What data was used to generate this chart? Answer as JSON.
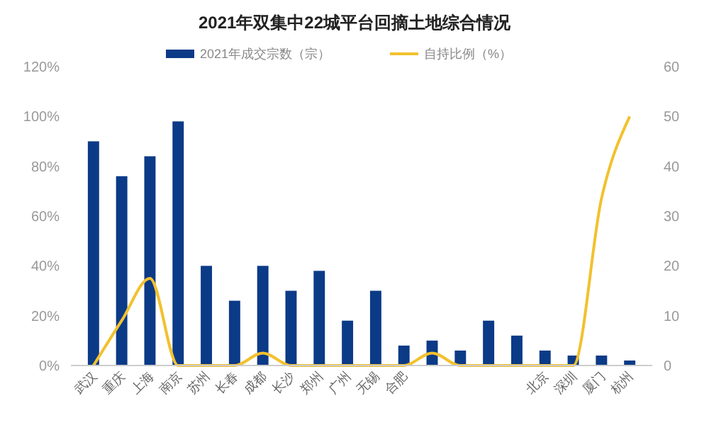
{
  "chart_data": {
    "type": "bar",
    "title": "2021年双集中22城平台回摘土地综合情况",
    "categories": [
      "武汉",
      "重庆",
      "上海",
      "南京",
      "苏州",
      "长春",
      "成都",
      "长沙",
      "郑州",
      "广州",
      "无锡",
      "合肥",
      null,
      null,
      null,
      null,
      "北京",
      "深圳",
      "厦门",
      "杭州"
    ],
    "series": [
      {
        "name": "2021年成交宗数（宗）",
        "axis": "y2",
        "color": "#0b3a87",
        "values": [
          45,
          38,
          42,
          49,
          20,
          13,
          20,
          15,
          19,
          9,
          15,
          4,
          5,
          3,
          9,
          6,
          3,
          2,
          2,
          1
        ]
      },
      {
        "name": "自持比例（%）",
        "type": "line",
        "axis": "y",
        "color": "#f2c12e",
        "values": [
          0,
          18,
          35,
          0,
          0,
          0,
          5,
          0,
          0,
          0,
          0,
          0,
          5,
          0,
          0,
          0,
          0,
          0,
          67,
          100
        ]
      }
    ],
    "ylim": [
      0,
      120
    ],
    "yticks": [
      {
        "value": 0,
        "label": "0%"
      },
      {
        "value": 20,
        "label": "20%"
      },
      {
        "value": 40,
        "label": "40%"
      },
      {
        "value": 60,
        "label": "60%"
      },
      {
        "value": 80,
        "label": "80%"
      },
      {
        "value": 100,
        "label": "100%"
      },
      {
        "value": 120,
        "label": "120%"
      }
    ],
    "y2lim": [
      0,
      60
    ],
    "y2ticks": [
      0,
      10,
      20,
      30,
      40,
      50,
      60
    ],
    "legend": "top",
    "grid": false,
    "line_style": "solid",
    "marker": "none"
  }
}
